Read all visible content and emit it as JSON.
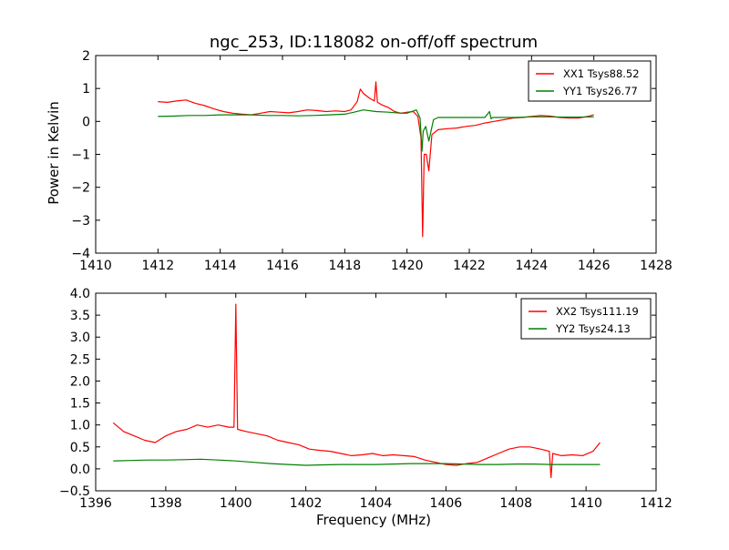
{
  "chart_data": [
    {
      "type": "line",
      "title": "ngc_253, ID:118082 on-off/off spectrum",
      "xlabel": "",
      "ylabel": "Power in Kelvin",
      "xlim": [
        1410,
        1428
      ],
      "ylim": [
        -4,
        2
      ],
      "xticks": [
        1410,
        1412,
        1414,
        1416,
        1418,
        1420,
        1422,
        1424,
        1426,
        1428
      ],
      "yticks": [
        2,
        1,
        0,
        -1,
        -2,
        -3,
        -4
      ],
      "xtick_labels": [
        "1410",
        "1412",
        "1414",
        "1416",
        "1418",
        "1420",
        "1422",
        "1424",
        "1426",
        "1428"
      ],
      "ytick_labels": [
        "2",
        "1",
        "0",
        "−1",
        "−2",
        "−3",
        "−4"
      ],
      "grid": false,
      "legend_position": "top-right",
      "series": [
        {
          "name": "XX1 Tsys88.52",
          "color": "#ff0000",
          "x": [
            1412.0,
            1412.3,
            1412.6,
            1412.9,
            1413.2,
            1413.5,
            1413.8,
            1414.1,
            1414.4,
            1414.7,
            1415.0,
            1415.3,
            1415.6,
            1415.9,
            1416.2,
            1416.5,
            1416.8,
            1417.1,
            1417.4,
            1417.7,
            1418.0,
            1418.2,
            1418.4,
            1418.5,
            1418.6,
            1418.8,
            1418.95,
            1419.0,
            1419.05,
            1419.2,
            1419.4,
            1419.6,
            1419.8,
            1420.0,
            1420.2,
            1420.35,
            1420.45,
            1420.5,
            1420.55,
            1420.62,
            1420.7,
            1420.8,
            1421.0,
            1421.3,
            1421.6,
            1421.9,
            1422.2,
            1422.5,
            1422.8,
            1423.1,
            1423.4,
            1423.7,
            1424.0,
            1424.3,
            1424.6,
            1424.9,
            1425.2,
            1425.5,
            1425.8,
            1426.0
          ],
          "y": [
            0.6,
            0.58,
            0.62,
            0.65,
            0.55,
            0.48,
            0.38,
            0.3,
            0.25,
            0.22,
            0.2,
            0.25,
            0.3,
            0.28,
            0.26,
            0.3,
            0.35,
            0.33,
            0.3,
            0.32,
            0.3,
            0.35,
            0.6,
            0.98,
            0.85,
            0.7,
            0.62,
            1.2,
            0.58,
            0.5,
            0.42,
            0.3,
            0.25,
            0.28,
            0.3,
            0.15,
            -0.5,
            -3.5,
            -1.0,
            -1.0,
            -1.5,
            -0.4,
            -0.25,
            -0.22,
            -0.2,
            -0.15,
            -0.12,
            -0.05,
            0.0,
            0.05,
            0.1,
            0.12,
            0.15,
            0.18,
            0.16,
            0.12,
            0.1,
            0.1,
            0.15,
            0.2
          ]
        },
        {
          "name": "YY1 Tsys26.77",
          "color": "#008000",
          "x": [
            1412.0,
            1412.5,
            1413.0,
            1413.5,
            1414.0,
            1414.5,
            1415.0,
            1415.5,
            1416.0,
            1416.5,
            1417.0,
            1417.5,
            1418.0,
            1418.3,
            1418.6,
            1419.0,
            1419.4,
            1419.8,
            1420.0,
            1420.3,
            1420.42,
            1420.48,
            1420.52,
            1420.6,
            1420.7,
            1420.85,
            1421.0,
            1421.5,
            1422.0,
            1422.5,
            1422.65,
            1422.7,
            1422.75,
            1423.0,
            1423.5,
            1424.0,
            1424.5,
            1425.0,
            1425.5,
            1426.0
          ],
          "y": [
            0.15,
            0.16,
            0.18,
            0.18,
            0.2,
            0.2,
            0.2,
            0.18,
            0.18,
            0.17,
            0.18,
            0.2,
            0.22,
            0.28,
            0.35,
            0.3,
            0.28,
            0.25,
            0.25,
            0.35,
            0.1,
            -0.9,
            -0.3,
            -0.15,
            -0.6,
            0.05,
            0.12,
            0.12,
            0.12,
            0.12,
            0.3,
            0.08,
            0.12,
            0.12,
            0.12,
            0.14,
            0.14,
            0.13,
            0.13,
            0.14
          ]
        }
      ]
    },
    {
      "type": "line",
      "title": "",
      "xlabel": "Frequency (MHz)",
      "ylabel": "",
      "xlim": [
        1396,
        1412
      ],
      "ylim": [
        -0.5,
        4.0
      ],
      "xticks": [
        1396,
        1398,
        1400,
        1402,
        1404,
        1406,
        1408,
        1410,
        1412
      ],
      "yticks": [
        4.0,
        3.5,
        3.0,
        2.5,
        2.0,
        1.5,
        1.0,
        0.5,
        0.0,
        -0.5
      ],
      "xtick_labels": [
        "1396",
        "1398",
        "1400",
        "1402",
        "1404",
        "1406",
        "1408",
        "1410",
        "1412"
      ],
      "ytick_labels": [
        "4.0",
        "3.5",
        "3.0",
        "2.5",
        "2.0",
        "1.5",
        "1.0",
        "0.5",
        "0.0",
        "−0.5"
      ],
      "grid": false,
      "legend_position": "top-right",
      "series": [
        {
          "name": "XX2 Tsys111.19",
          "color": "#ff0000",
          "x": [
            1396.5,
            1396.8,
            1397.1,
            1397.4,
            1397.7,
            1398.0,
            1398.3,
            1398.6,
            1398.9,
            1399.2,
            1399.5,
            1399.8,
            1399.95,
            1400.0,
            1400.05,
            1400.3,
            1400.6,
            1400.9,
            1401.2,
            1401.5,
            1401.8,
            1402.1,
            1402.4,
            1402.7,
            1403.0,
            1403.3,
            1403.6,
            1403.9,
            1404.2,
            1404.5,
            1404.8,
            1405.1,
            1405.4,
            1405.7,
            1406.0,
            1406.3,
            1406.6,
            1406.9,
            1407.2,
            1407.5,
            1407.8,
            1408.1,
            1408.4,
            1408.7,
            1408.95,
            1409.0,
            1409.05,
            1409.3,
            1409.6,
            1409.9,
            1410.2,
            1410.4
          ],
          "y": [
            1.05,
            0.85,
            0.75,
            0.65,
            0.6,
            0.75,
            0.85,
            0.9,
            1.0,
            0.95,
            1.0,
            0.95,
            0.95,
            3.75,
            0.9,
            0.85,
            0.8,
            0.75,
            0.65,
            0.6,
            0.55,
            0.45,
            0.42,
            0.4,
            0.35,
            0.3,
            0.32,
            0.35,
            0.3,
            0.32,
            0.3,
            0.28,
            0.2,
            0.15,
            0.1,
            0.08,
            0.12,
            0.15,
            0.25,
            0.35,
            0.45,
            0.5,
            0.5,
            0.45,
            0.4,
            -0.2,
            0.35,
            0.3,
            0.32,
            0.3,
            0.4,
            0.6
          ]
        },
        {
          "name": "YY2 Tsys24.13",
          "color": "#008000",
          "x": [
            1396.5,
            1397.0,
            1397.5,
            1398.0,
            1398.5,
            1399.0,
            1399.5,
            1400.0,
            1400.5,
            1401.0,
            1401.5,
            1402.0,
            1402.5,
            1403.0,
            1403.5,
            1404.0,
            1404.5,
            1405.0,
            1405.5,
            1406.0,
            1406.5,
            1407.0,
            1407.5,
            1408.0,
            1408.5,
            1409.0,
            1409.5,
            1410.0,
            1410.4
          ],
          "y": [
            0.18,
            0.19,
            0.2,
            0.2,
            0.21,
            0.22,
            0.2,
            0.18,
            0.15,
            0.12,
            0.1,
            0.08,
            0.09,
            0.1,
            0.1,
            0.1,
            0.11,
            0.12,
            0.12,
            0.12,
            0.11,
            0.1,
            0.1,
            0.11,
            0.11,
            0.1,
            0.1,
            0.1,
            0.1
          ]
        }
      ]
    }
  ]
}
